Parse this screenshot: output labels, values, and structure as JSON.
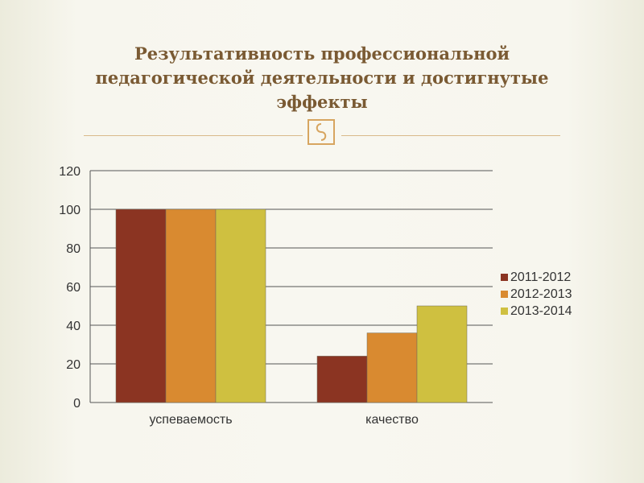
{
  "slide": {
    "title_lines": [
      "Результативность профессиональной",
      "педагогической деятельности и достигнутые",
      "эффекты"
    ],
    "ornament_icon": "ornament-glyph-icon"
  },
  "chart_data": {
    "type": "bar",
    "title": "",
    "xlabel": "",
    "ylabel": "",
    "categories": [
      "успеваемость",
      "качество"
    ],
    "series": [
      {
        "name": "2011-2012",
        "values": [
          100,
          24
        ],
        "color": "#8b3422"
      },
      {
        "name": "2012-2013",
        "values": [
          100,
          36
        ],
        "color": "#d98a30"
      },
      {
        "name": "2013-2014",
        "values": [
          100,
          50
        ],
        "color": "#cfc040"
      }
    ],
    "ylim": [
      0,
      120
    ],
    "yticks": [
      "0",
      "20",
      "40",
      "60",
      "80",
      "100",
      "120"
    ],
    "grid": true,
    "legend_position": "right"
  }
}
